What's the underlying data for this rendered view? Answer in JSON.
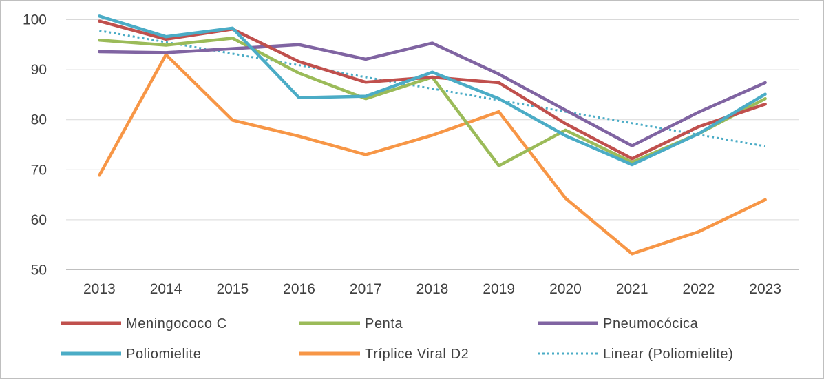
{
  "chart_data": {
    "type": "line",
    "title": "",
    "xlabel": "",
    "ylabel": "",
    "ylim": [
      50,
      100
    ],
    "y_ticks": [
      50,
      60,
      70,
      80,
      90,
      100
    ],
    "grid": "horizontal",
    "legend_position": "bottom",
    "categories": [
      "2013",
      "2014",
      "2015",
      "2016",
      "2017",
      "2018",
      "2019",
      "2020",
      "2021",
      "2022",
      "2023"
    ],
    "series": [
      {
        "name": "Meningococo C",
        "color": "#c0504d",
        "style": "solid",
        "values": [
          99.7,
          96.1,
          98.1,
          91.6,
          87.5,
          88.5,
          87.4,
          79.2,
          72.2,
          78.6,
          83.1
        ]
      },
      {
        "name": "Penta",
        "color": "#9bbb59",
        "style": "solid",
        "values": [
          95.9,
          94.9,
          96.3,
          89.3,
          84.2,
          88.5,
          70.8,
          77.9,
          71.5,
          77.2,
          84.2
        ]
      },
      {
        "name": "Pneumocócica",
        "color": "#8064a2",
        "style": "solid",
        "values": [
          93.6,
          93.4,
          94.2,
          95.0,
          92.1,
          95.3,
          89.1,
          81.9,
          74.8,
          81.5,
          87.4
        ]
      },
      {
        "name": "Poliomielite",
        "color": "#4bacc6",
        "style": "solid",
        "values": [
          100.7,
          96.6,
          98.3,
          84.4,
          84.7,
          89.5,
          84.2,
          76.8,
          71.0,
          77.2,
          85.1
        ]
      },
      {
        "name": "Tríplice Viral  D2",
        "color": "#f79646",
        "style": "solid",
        "values": [
          68.9,
          93.0,
          79.9,
          76.7,
          73.0,
          76.9,
          81.6,
          64.3,
          53.2,
          57.6,
          64.0
        ]
      },
      {
        "name": "Linear (Poliomielite)",
        "color": "#4bacc6",
        "style": "dotted",
        "values": [
          97.8,
          95.5,
          93.2,
          90.9,
          88.5,
          86.2,
          83.9,
          81.6,
          79.3,
          77.0,
          74.7
        ]
      }
    ]
  }
}
